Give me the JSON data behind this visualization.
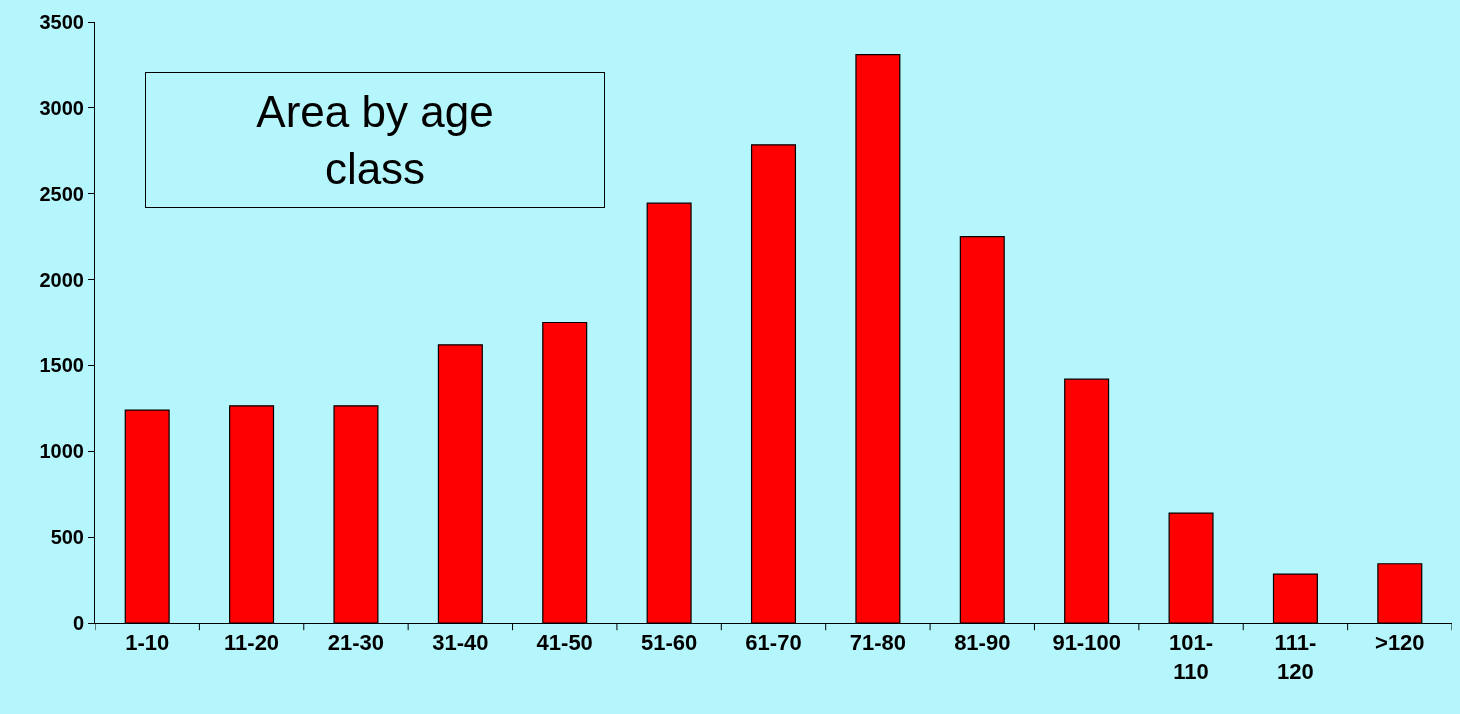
{
  "chart_data": {
    "type": "bar",
    "title": "Area by age class",
    "categories": [
      "1-10",
      "11-20",
      "21-30",
      "31-40",
      "41-50",
      "51-60",
      "61-70",
      "71-80",
      "81-90",
      "91-100",
      "101-110",
      "111-120",
      ">120"
    ],
    "values": [
      1240,
      1265,
      1265,
      1620,
      1750,
      2445,
      2785,
      3310,
      2250,
      1420,
      640,
      285,
      345
    ],
    "color": "#ff0000",
    "ylim": [
      0,
      3500
    ],
    "yticks": [
      0,
      500,
      1000,
      1500,
      2000,
      2500,
      3000,
      3500
    ],
    "grid": false,
    "legend": false
  }
}
